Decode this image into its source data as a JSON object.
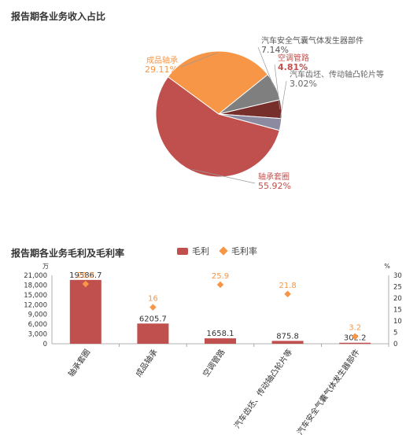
{
  "chart_data": [
    {
      "type": "pie",
      "title": "报告期各业务收入占比",
      "colors": [
        "#c0504d",
        "#f79646",
        "#7f7f7f",
        "#772f2c",
        "#8c8aa0"
      ],
      "slices": [
        {
          "name": "轴承套圈",
          "value": 55.92,
          "label": "55.92%"
        },
        {
          "name": "成品轴承",
          "value": 29.11,
          "label": "29.11%"
        },
        {
          "name": "汽车安全气囊气体发生器部件",
          "value": 7.14,
          "label": "7.14%"
        },
        {
          "name": "空调管路",
          "value": 4.81,
          "label": "4.81%"
        },
        {
          "name": "汽车齿坯、传动轴凸轮片等",
          "value": 3.02,
          "label": "3.02%"
        }
      ]
    },
    {
      "type": "bar",
      "title": "报告期各业务毛利及毛利率",
      "categories": [
        "轴承套圈",
        "成品轴承",
        "空调管路",
        "汽车齿坯、传动轴凸轮片等",
        "汽车安全气囊气体发生器部件"
      ],
      "y_unit": "万",
      "y2_unit": "%",
      "ylim": [
        0,
        21000
      ],
      "yticks": [
        0,
        3000,
        6000,
        9000,
        12000,
        15000,
        18000,
        21000
      ],
      "y2lim": [
        0,
        30
      ],
      "y2ticks": [
        0,
        5,
        10,
        15,
        20,
        25,
        30
      ],
      "series": [
        {
          "name": "毛利",
          "kind": "bar",
          "color": "#c0504d",
          "values": [
            19586.7,
            6205.7,
            1658.1,
            875.8,
            302.2
          ],
          "labels": [
            "19586.7",
            "6205.7",
            "1658.1",
            "875.8",
            "302.2"
          ]
        },
        {
          "name": "毛利率",
          "kind": "scatter",
          "axis": "right",
          "color": "#f79646",
          "values": [
            26.2,
            16,
            25.9,
            21.8,
            3.2
          ],
          "labels": [
            "26.2",
            "16",
            "25.9",
            "21.8",
            "3.2"
          ]
        }
      ]
    }
  ]
}
